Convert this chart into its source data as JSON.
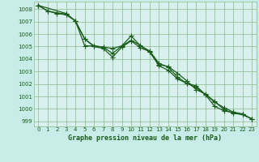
{
  "title": "Graphe pression niveau de la mer (hPa)",
  "bg_color": "#c8ece8",
  "plot_bg_color": "#d8f0ee",
  "grid_color": "#88bb88",
  "line_color": "#1a5c1a",
  "marker_color": "#1a5c1a",
  "xlim": [
    -0.5,
    23.5
  ],
  "ylim": [
    998.6,
    1008.6
  ],
  "yticks": [
    999,
    1000,
    1001,
    1002,
    1003,
    1004,
    1005,
    1006,
    1007,
    1008
  ],
  "xticks": [
    0,
    1,
    2,
    3,
    4,
    5,
    6,
    7,
    8,
    9,
    10,
    11,
    12,
    13,
    14,
    15,
    16,
    17,
    18,
    19,
    20,
    21,
    22,
    23
  ],
  "series1_x": [
    0,
    1,
    2,
    3,
    4,
    5,
    6,
    7,
    8,
    9,
    10,
    11,
    12,
    13,
    14,
    15,
    16,
    17,
    18,
    19,
    20,
    21,
    22,
    23
  ],
  "series1_y": [
    1008.3,
    1007.85,
    1007.7,
    1007.6,
    1007.05,
    1005.6,
    1005.0,
    1004.85,
    1004.15,
    1004.95,
    1005.45,
    1004.9,
    1004.6,
    1003.45,
    1003.1,
    1002.4,
    1002.05,
    1001.7,
    1001.15,
    1000.2,
    999.85,
    999.7,
    999.55,
    999.2
  ],
  "series2_x": [
    0,
    1,
    2,
    3,
    4,
    5,
    6,
    7,
    8,
    9,
    10,
    11,
    12,
    13,
    14,
    15,
    16,
    17,
    18,
    19,
    20,
    21,
    22,
    23
  ],
  "series2_y": [
    1008.3,
    1007.85,
    1007.65,
    1007.55,
    1007.05,
    1005.05,
    1005.05,
    1004.95,
    1004.85,
    1005.05,
    1005.5,
    1005.1,
    1004.55,
    1003.55,
    1003.4,
    1002.85,
    1002.25,
    1001.55,
    1001.2,
    1000.6,
    999.95,
    999.65,
    999.55,
    999.2
  ],
  "series3_x": [
    0,
    3,
    4,
    5,
    6,
    7,
    8,
    9,
    10,
    11,
    12,
    13,
    14,
    15,
    16,
    17,
    18,
    19,
    20,
    21,
    22,
    23
  ],
  "series3_y": [
    1008.3,
    1007.65,
    1007.05,
    1005.6,
    1005.05,
    1004.95,
    1004.45,
    1005.05,
    1005.85,
    1005.05,
    1004.65,
    1003.65,
    1003.35,
    1002.55,
    1002.05,
    1001.85,
    1001.15,
    1000.55,
    1000.1,
    999.75,
    999.6,
    999.2
  ]
}
